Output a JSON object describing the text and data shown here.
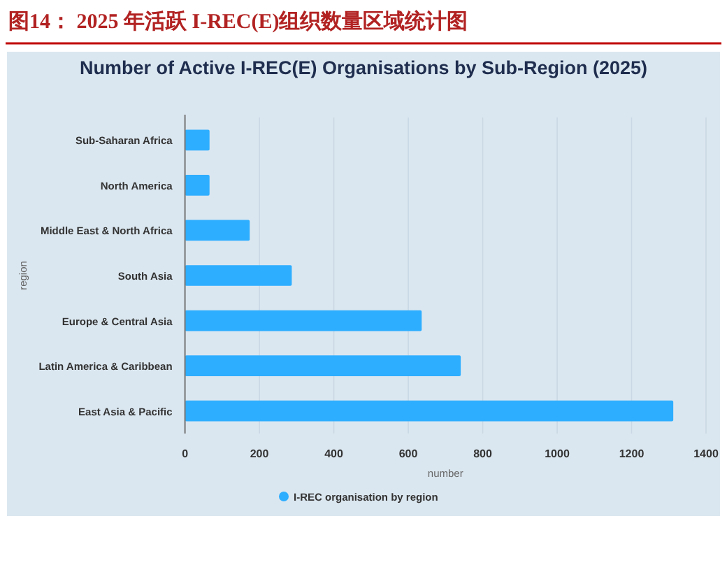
{
  "chart_data": {
    "type": "bar",
    "orientation": "horizontal",
    "title": "图14： 2025 年活跃 I-REC(E)组织数量区域统计图",
    "subtitle": "Number of Active I-REC(E) Organisations by Sub-Region (2025)",
    "xlabel": "number",
    "ylabel": "region",
    "categories": [
      "Sub-Saharan Africa",
      "North America",
      "Middle East & North Africa",
      "South Asia",
      "Europe & Central Asia",
      "Latin America & Caribbean",
      "East Asia & Pacific"
    ],
    "series": [
      {
        "name": "I-REC organisation by region",
        "color": "#2eaeff",
        "values": [
          66,
          66,
          174,
          287,
          636,
          741,
          1312
        ]
      }
    ],
    "xlim": [
      0,
      1400
    ],
    "xticks": [
      0,
      200,
      400,
      600,
      800,
      1000,
      1200,
      1400
    ],
    "grid": "x",
    "legend": "bottom"
  }
}
